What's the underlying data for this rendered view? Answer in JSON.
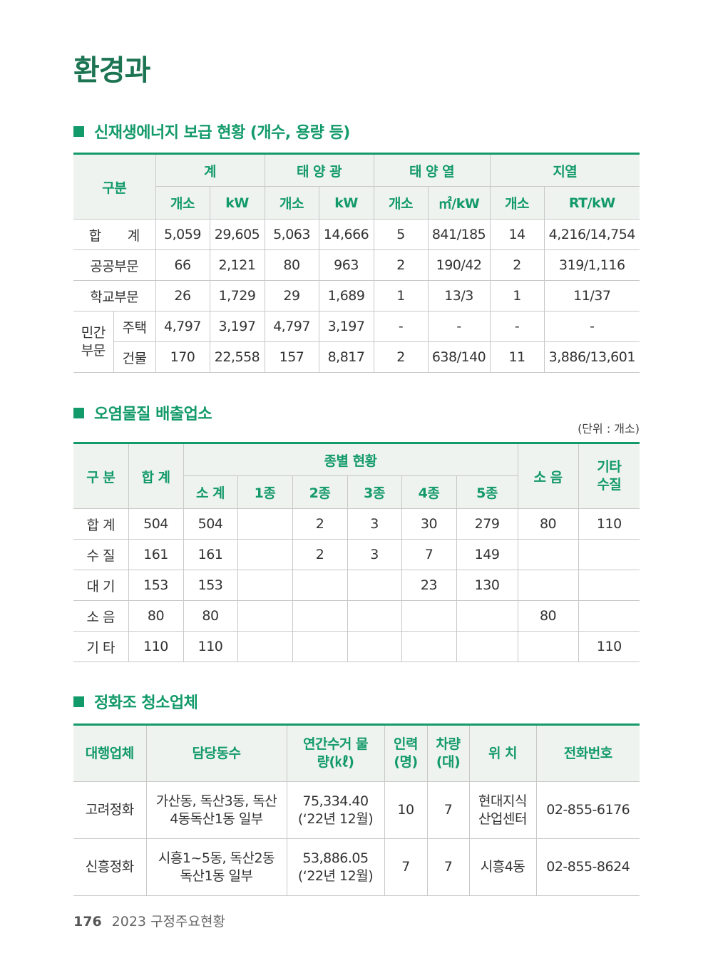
{
  "page_title": "환경과",
  "section1": {
    "title": "신재생에너지 보급 현황 (개수, 용량 등)",
    "headers": {
      "category": "구분",
      "total": "계",
      "solar_pv": "태 양 광",
      "solar_thermal": "태 양 열",
      "geothermal": "지열",
      "sub": [
        "개소",
        "kW",
        "개소",
        "kW",
        "개소",
        "㎡/kW",
        "개소",
        "RT/kW"
      ]
    },
    "rows": [
      {
        "label": "합　　계",
        "values": [
          "5,059",
          "29,605",
          "5,063",
          "14,666",
          "5",
          "841/185",
          "14",
          "4,216/14,754"
        ]
      },
      {
        "label": "공공부문",
        "values": [
          "66",
          "2,121",
          "80",
          "963",
          "2",
          "190/42",
          "2",
          "319/1,116"
        ]
      },
      {
        "label": "학교부문",
        "values": [
          "26",
          "1,729",
          "29",
          "1,689",
          "1",
          "13/3",
          "1",
          "11/37"
        ]
      }
    ],
    "private_group": "민간 부문",
    "private_rows": [
      {
        "label": "주택",
        "values": [
          "4,797",
          "3,197",
          "4,797",
          "3,197",
          "-",
          "-",
          "-",
          "-"
        ]
      },
      {
        "label": "건물",
        "values": [
          "170",
          "22,558",
          "157",
          "8,817",
          "2",
          "638/140",
          "11",
          "3,886/13,601"
        ]
      }
    ]
  },
  "section2": {
    "title": "오염물질 배출업소",
    "unit": "(단위 : 개소)",
    "headers": {
      "category": "구 분",
      "total": "합 계",
      "by_type": "종별 현황",
      "noise": "소 음",
      "other_water": "기타 수질",
      "sub": [
        "소 계",
        "1종",
        "2종",
        "3종",
        "4종",
        "5종"
      ]
    },
    "rows": [
      {
        "label": "합 계",
        "values": [
          "504",
          "504",
          "",
          "2",
          "3",
          "30",
          "279",
          "80",
          "110"
        ]
      },
      {
        "label": "수 질",
        "values": [
          "161",
          "161",
          "",
          "2",
          "3",
          "7",
          "149",
          "",
          ""
        ]
      },
      {
        "label": "대 기",
        "values": [
          "153",
          "153",
          "",
          "",
          "",
          "23",
          "130",
          "",
          ""
        ]
      },
      {
        "label": "소 음",
        "values": [
          "80",
          "80",
          "",
          "",
          "",
          "",
          "",
          "80",
          ""
        ]
      },
      {
        "label": "기 타",
        "values": [
          "110",
          "110",
          "",
          "",
          "",
          "",
          "",
          "",
          "110"
        ]
      }
    ]
  },
  "section3": {
    "title": "정화조 청소업체",
    "headers": [
      "대행업체",
      "담당동수",
      "연간수거 물량(㎘)",
      "인력 (명)",
      "차량 (대)",
      "위 치",
      "전화번호"
    ],
    "rows": [
      [
        "고려정화",
        "가산동, 독산3동, 독산4동독산1동 일부",
        "75,334.40 (‘22년 12월)",
        "10",
        "7",
        "현대지식 산업센터",
        "02-855-6176"
      ],
      [
        "신흥정화",
        "시흥1~5동, 독산2동 독산1동 일부",
        "53,886.05 (‘22년 12월)",
        "7",
        "7",
        "시흥4동",
        "02-855-8624"
      ]
    ]
  },
  "footer": {
    "page_number": "176",
    "publication": "2023 구정주요현황"
  },
  "colors": {
    "accent": "#139a6a",
    "title": "#1c7453",
    "header_bg": "#eef3ef"
  }
}
